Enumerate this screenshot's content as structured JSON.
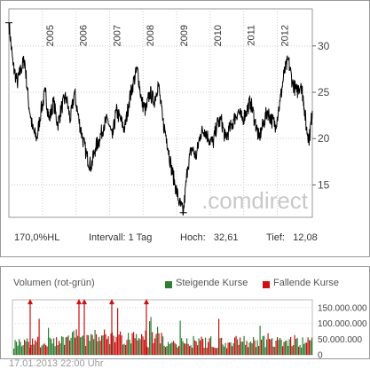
{
  "watermark": ".comdirect",
  "stats": {
    "volatility": "170,0%HL",
    "interval": "Intervall: 1 Tag",
    "high": "Hoch:   32,61",
    "low": "Tief:   12,08"
  },
  "volume_panel": {
    "title": "Volumen (rot-grün)",
    "legend_up": "Steigende Kurse",
    "legend_down": "Fallende Kurse",
    "up_color": "#2e7d32",
    "down_color": "#cc1111"
  },
  "footer": "17.01.2013 22:00 Uhr",
  "chart_data": [
    {
      "type": "line",
      "x_axis": {
        "type": "date",
        "tick_labels": [
          "2005",
          "2006",
          "2007",
          "2008",
          "2009",
          "2010",
          "2011",
          "2012"
        ],
        "range": [
          "2004-01-01",
          "2013-01-17"
        ]
      },
      "y_axis": {
        "position": "right",
        "tick_labels": [
          15,
          20,
          25,
          30
        ],
        "range": [
          11.5,
          34
        ]
      },
      "line_color": "#000000",
      "grid": true,
      "series": [
        {
          "x": [
            "2004-01-01",
            "2004-02-15",
            "2004-04-01",
            "2004-05-10",
            "2004-06-20",
            "2004-08-01",
            "2004-09-15",
            "2004-11-01",
            "2004-12-15",
            "2005-02-01",
            "2005-03-15",
            "2005-05-01",
            "2005-06-15",
            "2005-08-01",
            "2005-09-15",
            "2005-11-01",
            "2005-12-15",
            "2006-02-01",
            "2006-03-15",
            "2006-05-01",
            "2006-06-15",
            "2006-08-01",
            "2006-09-15",
            "2006-11-01",
            "2006-12-15",
            "2007-02-01",
            "2007-03-15",
            "2007-05-01",
            "2007-06-15",
            "2007-08-01",
            "2007-09-15",
            "2007-11-01",
            "2007-12-15",
            "2008-02-01",
            "2008-03-15",
            "2008-05-01",
            "2008-06-15",
            "2008-08-01",
            "2008-09-15",
            "2008-11-01",
            "2008-12-15",
            "2009-02-01",
            "2009-03-15",
            "2009-05-01",
            "2009-06-15",
            "2009-08-01",
            "2009-09-15",
            "2009-11-01",
            "2009-12-15",
            "2010-02-01",
            "2010-03-15",
            "2010-05-01",
            "2010-06-15",
            "2010-08-01",
            "2010-09-15",
            "2010-11-01",
            "2010-12-15",
            "2011-02-01",
            "2011-03-15",
            "2011-05-01",
            "2011-06-15",
            "2011-08-01",
            "2011-09-15",
            "2011-11-01",
            "2011-12-15",
            "2012-02-01",
            "2012-03-15",
            "2012-05-01",
            "2012-06-15",
            "2012-08-01",
            "2012-09-15",
            "2012-10-15",
            "2012-11-15",
            "2012-12-15",
            "2013-01-17"
          ],
          "values": [
            32.5,
            28,
            26,
            27.5,
            28.5,
            24,
            21,
            20,
            23,
            25,
            22,
            24,
            21.5,
            23.5,
            24.5,
            22,
            25,
            22,
            20,
            18,
            17,
            19,
            20,
            21.5,
            22,
            20,
            23,
            22,
            21,
            24,
            26,
            27.5,
            24,
            23,
            25,
            24,
            26,
            22,
            20,
            17,
            15,
            13,
            12,
            17,
            19,
            18,
            20.5,
            21,
            20,
            19.5,
            21.5,
            22,
            20,
            21,
            22,
            23,
            22,
            23,
            24,
            22,
            20,
            21.5,
            23,
            22,
            21.5,
            24,
            27,
            28.5,
            26,
            25,
            26,
            24,
            21,
            20,
            23
          ]
        }
      ]
    },
    {
      "type": "bar",
      "title": "Volumen (rot-grün)",
      "y_axis": {
        "position": "right",
        "tick_labels": [
          "0",
          "50.000.000",
          "100.000.000",
          "150.000.000"
        ],
        "range": [
          0,
          175000000
        ]
      },
      "series": [
        {
          "name": "Steigende Kurse",
          "color": "#2e7d32"
        },
        {
          "name": "Fallende Kurse",
          "color": "#cc1111"
        }
      ]
    }
  ]
}
